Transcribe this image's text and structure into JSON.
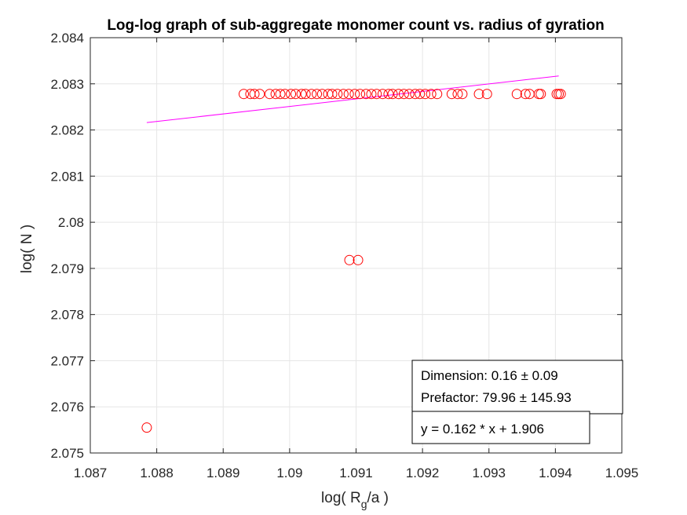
{
  "chart_data": {
    "type": "scatter",
    "title": "Log-log graph of sub-aggregate monomer count vs. radius of gyration",
    "xlabel_prefix": "log( R",
    "xlabel_sub": "g",
    "xlabel_suffix": "/a )",
    "ylabel": "log( N )",
    "xlim": [
      1.087,
      1.095
    ],
    "ylim": [
      2.075,
      2.084
    ],
    "xticks": [
      1.087,
      1.088,
      1.089,
      1.09,
      1.091,
      1.092,
      1.093,
      1.094,
      1.095
    ],
    "xtick_labels": [
      "1.087",
      "1.088",
      "1.089",
      "1.09",
      "1.091",
      "1.092",
      "1.093",
      "1.094",
      "1.095"
    ],
    "yticks": [
      2.075,
      2.076,
      2.077,
      2.078,
      2.079,
      2.08,
      2.081,
      2.082,
      2.083,
      2.084
    ],
    "ytick_labels": [
      "2.075",
      "2.076",
      "2.077",
      "2.078",
      "2.079",
      "2.08",
      "2.081",
      "2.082",
      "2.083",
      "2.084"
    ],
    "grid": true,
    "marker_color": "#ff0000",
    "fit_color": "#ff00ff",
    "points": {
      "x": [
        1.08785,
        1.0909,
        1.09103,
        1.08931,
        1.08941,
        1.08947,
        1.08955,
        1.0897,
        1.08979,
        1.08986,
        1.08993,
        1.09002,
        1.09009,
        1.09018,
        1.09024,
        1.09033,
        1.09041,
        1.09049,
        1.09058,
        1.09064,
        1.09072,
        1.09081,
        1.09089,
        1.09098,
        1.09106,
        1.09115,
        1.09123,
        1.09131,
        1.0914,
        1.09149,
        1.09155,
        1.09164,
        1.09172,
        1.0918,
        1.09189,
        1.09196,
        1.09204,
        1.09213,
        1.09222,
        1.09244,
        1.09253,
        1.0926,
        1.09285,
        1.09297,
        1.09342,
        1.09355,
        1.09361,
        1.09375,
        1.09378,
        1.09402,
        1.09405,
        1.09408
      ],
      "y": [
        2.07555,
        2.07918,
        2.07918,
        2.08278,
        2.08278,
        2.08278,
        2.08278,
        2.08278,
        2.08278,
        2.08278,
        2.08278,
        2.08278,
        2.08278,
        2.08278,
        2.08278,
        2.08278,
        2.08278,
        2.08278,
        2.08278,
        2.08278,
        2.08278,
        2.08278,
        2.08278,
        2.08278,
        2.08278,
        2.08278,
        2.08278,
        2.08278,
        2.08278,
        2.08278,
        2.08278,
        2.08278,
        2.08278,
        2.08278,
        2.08278,
        2.08278,
        2.08278,
        2.08278,
        2.08278,
        2.08278,
        2.08278,
        2.08278,
        2.08278,
        2.08278,
        2.08278,
        2.08278,
        2.08278,
        2.08278,
        2.08278,
        2.08278,
        2.08278,
        2.08278
      ]
    },
    "fit_line": {
      "x": [
        1.08785,
        1.09405
      ],
      "y": [
        2.08216,
        2.08317
      ]
    },
    "annotations": {
      "dimension": "Dimension: 0.16 ± 0.09",
      "prefactor": "Prefactor: 79.96 ± 145.93",
      "equation": "y = 0.162 * x + 1.906"
    }
  }
}
